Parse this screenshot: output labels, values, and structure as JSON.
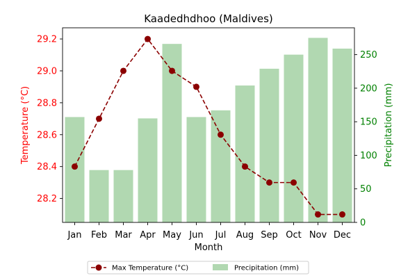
{
  "chart_data": {
    "type": "bar+line",
    "title": "Kaadedhdhoo (Maldives)",
    "xlabel": "Month",
    "ylabel_left": "Temperature (°C)",
    "ylabel_right": "Precipitation (mm)",
    "categories": [
      "Jan",
      "Feb",
      "Mar",
      "Apr",
      "May",
      "Jun",
      "Jul",
      "Aug",
      "Sep",
      "Oct",
      "Nov",
      "Dec"
    ],
    "series": [
      {
        "name": "Max Temperature (°C)",
        "type": "line",
        "axis": "left",
        "values": [
          28.4,
          28.7,
          29.0,
          29.2,
          29.0,
          28.9,
          28.6,
          28.4,
          28.3,
          28.3,
          28.1,
          28.1
        ]
      },
      {
        "name": "Precipitation (mm)",
        "type": "bar",
        "axis": "right",
        "values": [
          157,
          78,
          78,
          155,
          266,
          157,
          167,
          204,
          229,
          250,
          275,
          259
        ]
      }
    ],
    "ylim_left": [
      28.05,
      29.27
    ],
    "yticks_left": [
      28.2,
      28.4,
      28.6,
      28.8,
      29.0,
      29.2
    ],
    "ylim_right": [
      0,
      290
    ],
    "yticks_right": [
      0,
      50,
      100,
      150,
      200,
      250
    ],
    "grid": false,
    "legend_position": "bottom-center",
    "colors": {
      "line": "#8b0000",
      "bar": "#b1d8b1",
      "left_axis": "#ff0000",
      "right_axis": "#008000"
    }
  }
}
